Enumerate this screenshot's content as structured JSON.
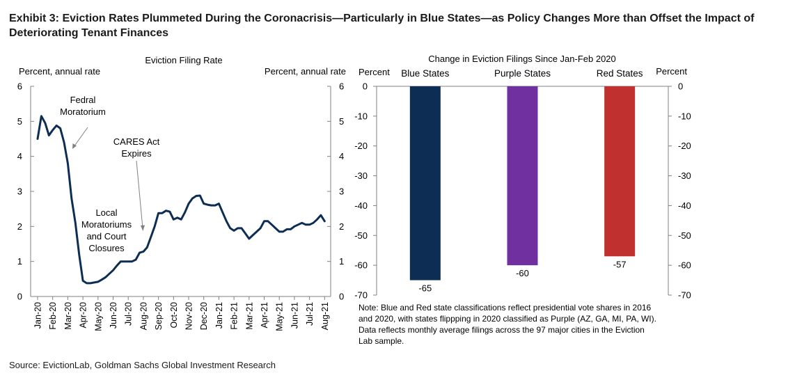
{
  "exhibit_title": "Exhibit 3: Eviction Rates Plummeted During the Coronacrisis—Particularly in Blue States—as Policy Changes More than Offset the Impact of Deteriorating Tenant Finances",
  "source": "Source: EvictionLab, Goldman Sachs Global Investment Research",
  "chart_data": [
    {
      "type": "line",
      "title": "Eviction Filing Rate",
      "ylabel_left": "Percent, annual rate",
      "ylabel_right": "Percent, annual rate",
      "ylim": [
        0,
        6
      ],
      "yticks": [
        0,
        1,
        2,
        3,
        4,
        5,
        6
      ],
      "xlim": [
        0,
        19.4
      ],
      "xticks": [
        "Jan-20",
        "Feb-20",
        "Mar-20",
        "Apr-20",
        "May-20",
        "Jun-20",
        "Jul-20",
        "Aug-20",
        "Sep-20",
        "Oct-20",
        "Nov-20",
        "Dec-20",
        "Jan-21",
        "Feb-21",
        "Mar-21",
        "Apr-21",
        "May-21",
        "Jun-21",
        "Jul-21",
        "Aug-21"
      ],
      "color": "#0d2d54",
      "series": [
        {
          "x": [
            0.0,
            0.25,
            0.5,
            0.75,
            1.0,
            1.25,
            1.5,
            1.75,
            2.0,
            2.25,
            2.5,
            2.75,
            3.0,
            3.25,
            3.5,
            3.75,
            4.0,
            4.25,
            4.5,
            4.75,
            5.0,
            5.25,
            5.5,
            5.75,
            6.0,
            6.25,
            6.5,
            6.75,
            7.0,
            7.25,
            7.5,
            7.75,
            8.0,
            8.25,
            8.5,
            8.75,
            9.0,
            9.25,
            9.5,
            9.75,
            10.0,
            10.25,
            10.5,
            10.75,
            11.0,
            11.25,
            11.5,
            11.75,
            12.0,
            12.25,
            12.5,
            12.75,
            13.0,
            13.25,
            13.5,
            13.75,
            14.0,
            14.25,
            14.5,
            14.75,
            15.0,
            15.25,
            15.5,
            15.75,
            16.0,
            16.25,
            16.5,
            16.75,
            17.0,
            17.25,
            17.5,
            17.75,
            18.0,
            18.25,
            18.5,
            18.75,
            19.0
          ],
          "values": [
            4.5,
            5.15,
            4.95,
            4.6,
            4.75,
            4.88,
            4.8,
            4.4,
            3.8,
            2.8,
            2.1,
            1.2,
            0.45,
            0.38,
            0.38,
            0.4,
            0.42,
            0.48,
            0.55,
            0.65,
            0.75,
            0.88,
            1.0,
            1.0,
            1.0,
            1.0,
            1.05,
            1.25,
            1.28,
            1.4,
            1.7,
            2.0,
            2.38,
            2.38,
            2.45,
            2.42,
            2.2,
            2.25,
            2.2,
            2.4,
            2.65,
            2.8,
            2.87,
            2.88,
            2.65,
            2.62,
            2.6,
            2.6,
            2.65,
            2.4,
            2.15,
            1.95,
            1.88,
            1.95,
            1.95,
            1.8,
            1.65,
            1.75,
            1.85,
            1.95,
            2.15,
            2.15,
            2.05,
            1.95,
            1.85,
            1.85,
            1.92,
            1.92,
            2.0,
            2.05,
            2.1,
            2.05,
            2.05,
            2.1,
            2.2,
            2.32,
            2.15
          ]
        }
      ],
      "annotations": [
        {
          "lines": [
            "Fedral",
            "Moratorium"
          ]
        },
        {
          "lines": [
            "CARES Act",
            "Expires"
          ]
        },
        {
          "lines": [
            "Local",
            "Moratoriums",
            "and Court",
            "Closures"
          ]
        }
      ]
    },
    {
      "type": "bar",
      "title": "Change  in Eviction Filings Since Jan-Feb  2020",
      "ylabel_left": "Percent",
      "ylabel_right": "Percent",
      "ylim": [
        -70,
        0
      ],
      "yticks": [
        0,
        -10,
        -20,
        -30,
        -40,
        -50,
        -60,
        -70
      ],
      "categories": [
        "Blue States",
        "Purple States",
        "Red States"
      ],
      "values": [
        -65,
        -60,
        -57
      ],
      "data_labels": [
        "-65",
        "-60",
        "-57"
      ],
      "colors": [
        "#0d2d54",
        "#7030a0",
        "#c0302f"
      ],
      "note": [
        "Note: Blue and Red state classifications reflect presidential vote shares in 2016",
        "and 2020, with states flippping in 2020 classified as Purple (AZ, GA, MI, PA, WI).",
        "Data reflects monthly average filings across the 97 major cities in the Eviction",
        "Lab sample."
      ]
    }
  ]
}
